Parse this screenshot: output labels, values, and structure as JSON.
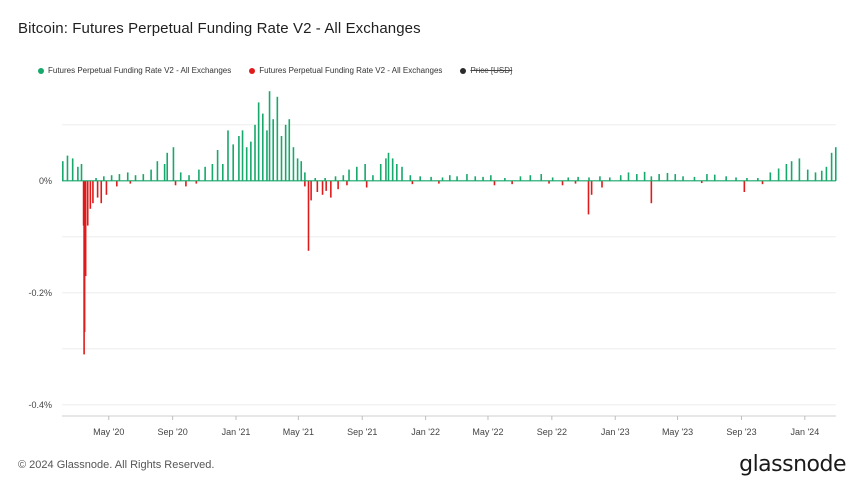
{
  "title": "Bitcoin: Futures Perpetual Funding Rate V2 - All Exchanges",
  "legend": [
    {
      "label": "Futures Perpetual Funding Rate V2 - All Exchanges",
      "color": "#17a86b",
      "hidden": false
    },
    {
      "label": "Futures Perpetual Funding Rate V2 - All Exchanges",
      "color": "#e01b1b",
      "hidden": false
    },
    {
      "label": "Price [USD]",
      "color": "#2b2b2b",
      "hidden": true
    }
  ],
  "footer": "© 2024 Glassnode. All Rights Reserved.",
  "brand": "glassnode",
  "colors": {
    "positive": "#17a86b",
    "negative": "#e01b1b",
    "grid": "#e9e9e9",
    "axis_text": "#444444"
  },
  "chart_data": {
    "type": "bar",
    "title": "Bitcoin: Futures Perpetual Funding Rate V2 - All Exchanges",
    "x_start": "2020-02-01",
    "x_end": "2024-03-01",
    "ylim": [
      -0.0042,
      0.0018
    ],
    "yticks": [
      {
        "value": 0,
        "label": "0%"
      },
      {
        "value": -0.002,
        "label": "-0.2%"
      },
      {
        "value": -0.004,
        "label": "-0.4%"
      }
    ],
    "xticks": [
      {
        "date": "2020-05-01",
        "label": "May '20"
      },
      {
        "date": "2020-09-01",
        "label": "Sep '20"
      },
      {
        "date": "2021-01-01",
        "label": "Jan '21"
      },
      {
        "date": "2021-05-01",
        "label": "May '21"
      },
      {
        "date": "2021-09-01",
        "label": "Sep '21"
      },
      {
        "date": "2022-01-01",
        "label": "Jan '22"
      },
      {
        "date": "2022-05-01",
        "label": "May '22"
      },
      {
        "date": "2022-09-01",
        "label": "Sep '22"
      },
      {
        "date": "2023-01-01",
        "label": "Jan '23"
      },
      {
        "date": "2023-05-01",
        "label": "May '23"
      },
      {
        "date": "2023-09-01",
        "label": "Sep '23"
      },
      {
        "date": "2024-01-01",
        "label": "Jan '24"
      }
    ],
    "grid": true,
    "legend_position": "top-left",
    "series": [
      {
        "name": "Futures Perpetual Funding Rate V2 - All Exchanges",
        "polarity": "positive",
        "points": [
          [
            "2020-02-01",
            0.00035
          ],
          [
            "2020-02-10",
            0.00045
          ],
          [
            "2020-02-20",
            0.0004
          ],
          [
            "2020-03-01",
            0.00025
          ],
          [
            "2020-03-08",
            0.0003
          ],
          [
            "2020-04-05",
            5e-05
          ],
          [
            "2020-04-20",
            8e-05
          ],
          [
            "2020-05-05",
            0.0001
          ],
          [
            "2020-05-20",
            0.00012
          ],
          [
            "2020-06-05",
            0.00015
          ],
          [
            "2020-06-20",
            0.0001
          ],
          [
            "2020-07-05",
            0.00012
          ],
          [
            "2020-07-20",
            0.0002
          ],
          [
            "2020-08-01",
            0.00035
          ],
          [
            "2020-08-15",
            0.0003
          ],
          [
            "2020-08-20",
            0.0005
          ],
          [
            "2020-09-01",
            0.0006
          ],
          [
            "2020-09-15",
            0.00015
          ],
          [
            "2020-10-01",
            0.0001
          ],
          [
            "2020-10-20",
            0.0002
          ],
          [
            "2020-11-01",
            0.00025
          ],
          [
            "2020-11-15",
            0.0003
          ],
          [
            "2020-11-25",
            0.00055
          ],
          [
            "2020-12-05",
            0.0003
          ],
          [
            "2020-12-15",
            0.0009
          ],
          [
            "2020-12-25",
            0.00065
          ],
          [
            "2021-01-05",
            0.0008
          ],
          [
            "2021-01-12",
            0.0009
          ],
          [
            "2021-01-20",
            0.0006
          ],
          [
            "2021-01-28",
            0.0007
          ],
          [
            "2021-02-05",
            0.001
          ],
          [
            "2021-02-12",
            0.0014
          ],
          [
            "2021-02-20",
            0.0012
          ],
          [
            "2021-02-28",
            0.0009
          ],
          [
            "2021-03-05",
            0.0016
          ],
          [
            "2021-03-12",
            0.0011
          ],
          [
            "2021-03-20",
            0.0015
          ],
          [
            "2021-03-28",
            0.0008
          ],
          [
            "2021-04-05",
            0.001
          ],
          [
            "2021-04-12",
            0.0011
          ],
          [
            "2021-04-20",
            0.0006
          ],
          [
            "2021-04-28",
            0.0004
          ],
          [
            "2021-05-05",
            0.00035
          ],
          [
            "2021-05-12",
            0.00015
          ],
          [
            "2021-06-01",
            5e-05
          ],
          [
            "2021-06-20",
            5e-05
          ],
          [
            "2021-07-10",
            8e-05
          ],
          [
            "2021-07-25",
            0.0001
          ],
          [
            "2021-08-05",
            0.0002
          ],
          [
            "2021-08-20",
            0.00025
          ],
          [
            "2021-09-05",
            0.0003
          ],
          [
            "2021-09-20",
            0.0001
          ],
          [
            "2021-10-05",
            0.0003
          ],
          [
            "2021-10-15",
            0.0004
          ],
          [
            "2021-10-20",
            0.0005
          ],
          [
            "2021-10-28",
            0.0004
          ],
          [
            "2021-11-05",
            0.0003
          ],
          [
            "2021-11-15",
            0.00025
          ],
          [
            "2021-12-01",
            0.0001
          ],
          [
            "2021-12-20",
            8e-05
          ],
          [
            "2022-01-10",
            7e-05
          ],
          [
            "2022-02-01",
            6e-05
          ],
          [
            "2022-02-15",
            0.0001
          ],
          [
            "2022-03-01",
            8e-05
          ],
          [
            "2022-03-20",
            0.00012
          ],
          [
            "2022-04-05",
            8e-05
          ],
          [
            "2022-04-20",
            7e-05
          ],
          [
            "2022-05-05",
            0.0001
          ],
          [
            "2022-06-01",
            5e-05
          ],
          [
            "2022-07-01",
            8e-05
          ],
          [
            "2022-07-20",
            0.0001
          ],
          [
            "2022-08-10",
            0.00012
          ],
          [
            "2022-09-01",
            6e-05
          ],
          [
            "2022-10-01",
            6e-05
          ],
          [
            "2022-10-20",
            7e-05
          ],
          [
            "2022-11-10",
            6e-05
          ],
          [
            "2022-12-01",
            8e-05
          ],
          [
            "2022-12-20",
            6e-05
          ],
          [
            "2023-01-10",
            0.0001
          ],
          [
            "2023-01-25",
            0.00015
          ],
          [
            "2023-02-10",
            0.00012
          ],
          [
            "2023-02-25",
            0.00016
          ],
          [
            "2023-03-10",
            8e-05
          ],
          [
            "2023-03-25",
            0.00012
          ],
          [
            "2023-04-10",
            0.00014
          ],
          [
            "2023-04-25",
            0.00012
          ],
          [
            "2023-05-10",
            8e-05
          ],
          [
            "2023-06-01",
            7e-05
          ],
          [
            "2023-06-25",
            0.00012
          ],
          [
            "2023-07-10",
            0.00011
          ],
          [
            "2023-08-01",
            8e-05
          ],
          [
            "2023-08-20",
            6e-05
          ],
          [
            "2023-09-10",
            5e-05
          ],
          [
            "2023-10-01",
            5e-05
          ],
          [
            "2023-10-25",
            0.00015
          ],
          [
            "2023-11-10",
            0.00022
          ],
          [
            "2023-11-25",
            0.0003
          ],
          [
            "2023-12-05",
            0.00035
          ],
          [
            "2023-12-20",
            0.0004
          ],
          [
            "2024-01-05",
            0.0002
          ],
          [
            "2024-01-20",
            0.00015
          ],
          [
            "2024-02-01",
            0.00018
          ],
          [
            "2024-02-10",
            0.00025
          ],
          [
            "2024-02-20",
            0.0005
          ],
          [
            "2024-02-28",
            0.0006
          ]
        ]
      },
      {
        "name": "Futures Perpetual Funding Rate V2 - All Exchanges",
        "polarity": "negative",
        "points": [
          [
            "2020-03-12",
            -0.0008
          ],
          [
            "2020-03-13",
            -0.0031
          ],
          [
            "2020-03-14",
            -0.0027
          ],
          [
            "2020-03-16",
            -0.0017
          ],
          [
            "2020-03-20",
            -0.0008
          ],
          [
            "2020-03-25",
            -0.0005
          ],
          [
            "2020-03-30",
            -0.0004
          ],
          [
            "2020-04-08",
            -0.0003
          ],
          [
            "2020-04-15",
            -0.0004
          ],
          [
            "2020-04-25",
            -0.00025
          ],
          [
            "2020-05-15",
            -0.0001
          ],
          [
            "2020-06-10",
            -5e-05
          ],
          [
            "2020-09-05",
            -8e-05
          ],
          [
            "2020-09-25",
            -0.0001
          ],
          [
            "2020-10-15",
            -5e-05
          ],
          [
            "2021-05-12",
            -0.0001
          ],
          [
            "2021-05-19",
            -0.00125
          ],
          [
            "2021-05-24",
            -0.00035
          ],
          [
            "2021-06-05",
            -0.0002
          ],
          [
            "2021-06-15",
            -0.00025
          ],
          [
            "2021-06-22",
            -0.00018
          ],
          [
            "2021-07-01",
            -0.0003
          ],
          [
            "2021-07-15",
            -0.00015
          ],
          [
            "2021-08-01",
            -8e-05
          ],
          [
            "2021-09-08",
            -0.00012
          ],
          [
            "2021-12-05",
            -6e-05
          ],
          [
            "2022-01-25",
            -5e-05
          ],
          [
            "2022-05-12",
            -8e-05
          ],
          [
            "2022-06-15",
            -6e-05
          ],
          [
            "2022-08-25",
            -5e-05
          ],
          [
            "2022-09-20",
            -8e-05
          ],
          [
            "2022-10-15",
            -5e-05
          ],
          [
            "2022-11-09",
            -0.0006
          ],
          [
            "2022-11-15",
            -0.00025
          ],
          [
            "2022-12-05",
            -0.00012
          ],
          [
            "2023-03-10",
            -0.0004
          ],
          [
            "2023-06-15",
            -4e-05
          ],
          [
            "2023-09-05",
            -0.0002
          ],
          [
            "2023-10-10",
            -6e-05
          ]
        ]
      }
    ]
  }
}
